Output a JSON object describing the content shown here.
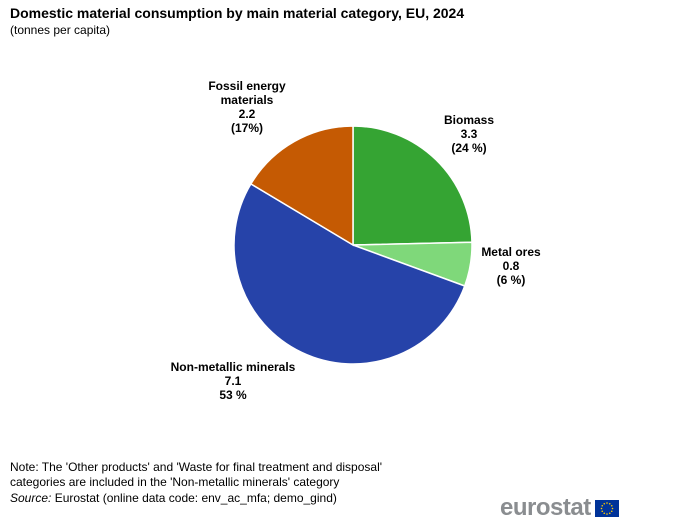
{
  "header": {
    "title": "Domestic material consumption by main material category, EU, 2024",
    "subtitle": "(tonnes per capita)"
  },
  "chart_data": {
    "type": "pie",
    "title": "Domestic material consumption by main material category, EU, 2024",
    "unit": "tonnes per capita",
    "start_angle_deg": 0,
    "direction": "clockwise",
    "slices": [
      {
        "name": "Biomass",
        "name_lines": [
          "Biomass"
        ],
        "value": 3.3,
        "value_label": "3.3",
        "percent": 24,
        "percent_label": "(24 %)",
        "color": "#35a433"
      },
      {
        "name": "Metal ores",
        "name_lines": [
          "Metal ores"
        ],
        "value": 0.8,
        "value_label": "0.8",
        "percent": 6,
        "percent_label": "(6 %)",
        "color": "#7fd87a"
      },
      {
        "name": "Non-metallic minerals",
        "name_lines": [
          "Non-metallic minerals"
        ],
        "value": 7.1,
        "value_label": "7.1",
        "percent": 53,
        "percent_label": "53 %",
        "color": "#2643a9"
      },
      {
        "name": "Fossil energy materials",
        "name_lines": [
          "Fossil energy",
          "materials"
        ],
        "value": 2.2,
        "value_label": "2.2",
        "percent": 17,
        "percent_label": "(17%)",
        "color": "#c55a03"
      }
    ]
  },
  "footer": {
    "note_line1": "Note: The 'Other products'  and 'Waste for final treatment and disposal'",
    "note_line2": "categories are included in the 'Non-metallic minerals' category",
    "source_label": "Source:",
    "source_text": " Eurostat (online data code: env_ac_mfa; demo_gind)",
    "logo_text": "eurostat",
    "flag_icon": "eu-flag-icon",
    "flag_color": "#003399",
    "star_color": "#ffcc00"
  }
}
